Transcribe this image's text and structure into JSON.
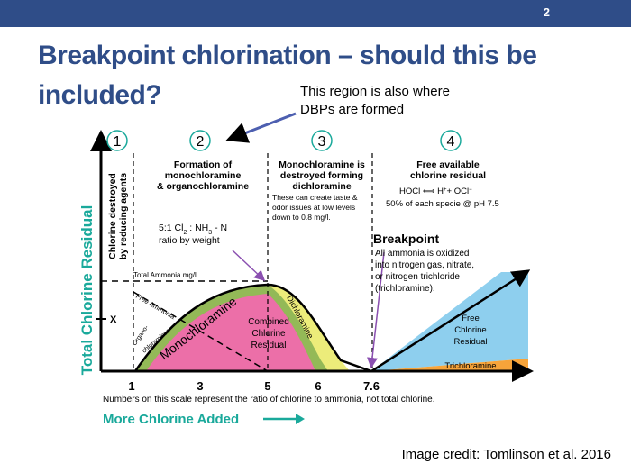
{
  "slide": {
    "page_number": "2",
    "title": "Breakpoint chlorination – should this be included?",
    "callout": "This region is also where DBPs are formed",
    "credit": "Image credit: Tomlinson et al. 2016"
  },
  "diagram": {
    "y_axis_title": "Total Chlorine Residual",
    "y_axis_sub_1": "Chlorine destroyed",
    "y_axis_sub_2": "by reducing agents",
    "y_marker": "X",
    "x_axis_title": "More Chlorine Added",
    "x_axis_note": "Numbers on this scale represent the ratio of chlorine to ammonia, not total chlorine.",
    "x_ticks": [
      "1",
      "3",
      "5",
      "6",
      "7.6"
    ],
    "zones": [
      {
        "number": "1",
        "heading": []
      },
      {
        "number": "2",
        "heading": [
          "Formation of",
          "monochloramine",
          "& organochloramine"
        ]
      },
      {
        "number": "3",
        "heading": [
          "Monochloramine is",
          "destroyed forming",
          "dichloramine"
        ]
      },
      {
        "number": "4",
        "heading": [
          "Free available",
          "chlorine residual"
        ]
      }
    ],
    "zone3_note": [
      "These can create taste &",
      "odor issues at low levels",
      "down to 0.8 mg/l."
    ],
    "zone4_eq_left": "HOCl",
    "zone4_eq_mid": "H",
    "zone4_eq_plus": "+ OCl",
    "zone4_note": "50% of each specie @ pH 7.5",
    "ratio_line1": "5:1 Cl",
    "ratio_line1_rest": " : NH",
    "ratio_line1_end": " - N",
    "ratio_line2": "ratio by weight",
    "total_ammonia": "Total Ammonia mg/l",
    "free_ammonia": "Free Ammonia",
    "organo_1": "Organo-",
    "organo_2": "chloramines",
    "monochloramine": "Monochloramine",
    "dichloramine": "Dichloramine",
    "combined_residual": [
      "Combined",
      "Chlorine",
      "Residual"
    ],
    "breakpoint_title": "Breakpoint",
    "breakpoint_note": [
      "All ammonia is oxidized",
      "into nitrogen gas, nitrate,",
      "or nitrogen trichloride",
      "(trichloramine)."
    ],
    "free_residual": [
      "Free",
      "Chlorine",
      "Residual"
    ],
    "trichloramine": "Trichloramine",
    "colors": {
      "title_blue": "#2f4d88",
      "teal": "#1aa99b",
      "combined_pink": "#ec6fa8",
      "mono_green": "#93b957",
      "di_yellow": "#ecec7a",
      "free_blue": "#8ecfee",
      "trichloramine_orange": "#f7a43a"
    }
  }
}
